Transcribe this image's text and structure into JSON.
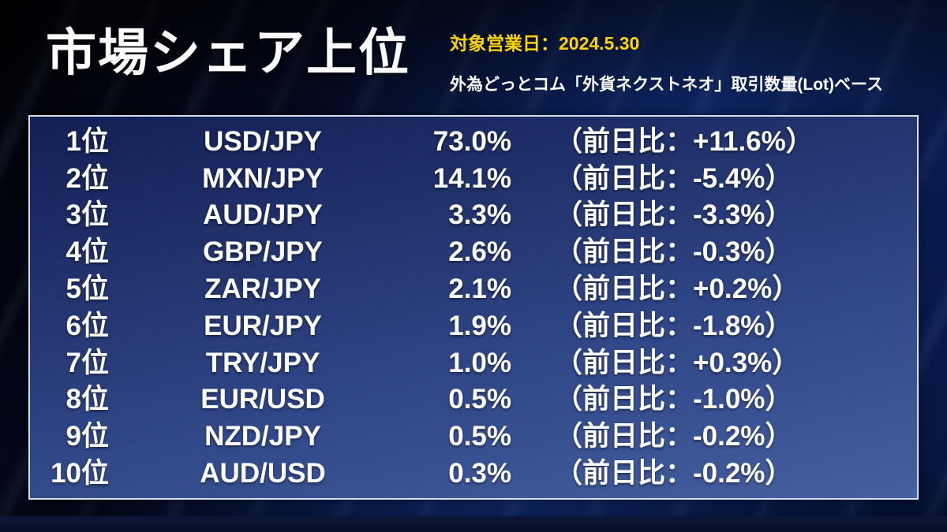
{
  "header": {
    "title": "市場シェア上位",
    "date_label": "対象営業日：2024.5.30",
    "subtitle": "外為どっとコム「外貨ネクストネオ」取引数量(Lot)ベース"
  },
  "colors": {
    "accent_yellow": "#ffd400",
    "panel_border": "#d9dde8",
    "panel_gradient_top": "#131f55",
    "panel_gradient_bottom": "#45609f",
    "background_blue": "#0d2668",
    "text": "#ffffff"
  },
  "chart_data": {
    "type": "table",
    "title": "市場シェア上位",
    "rows": [
      {
        "rank": "1位",
        "pair": "USD/JPY",
        "share": "73.0%",
        "share_value": 73.0,
        "change": "（前日比：+11.6%）",
        "change_value": 11.6
      },
      {
        "rank": "2位",
        "pair": "MXN/JPY",
        "share": "14.1%",
        "share_value": 14.1,
        "change": "（前日比：-5.4%）",
        "change_value": -5.4
      },
      {
        "rank": "3位",
        "pair": "AUD/JPY",
        "share": "3.3%",
        "share_value": 3.3,
        "change": "（前日比：-3.3%）",
        "change_value": -3.3
      },
      {
        "rank": "4位",
        "pair": "GBP/JPY",
        "share": "2.6%",
        "share_value": 2.6,
        "change": "（前日比：-0.3%）",
        "change_value": -0.3
      },
      {
        "rank": "5位",
        "pair": "ZAR/JPY",
        "share": "2.1%",
        "share_value": 2.1,
        "change": "（前日比：+0.2%）",
        "change_value": 0.2
      },
      {
        "rank": "6位",
        "pair": "EUR/JPY",
        "share": "1.9%",
        "share_value": 1.9,
        "change": "（前日比：-1.8%）",
        "change_value": -1.8
      },
      {
        "rank": "7位",
        "pair": "TRY/JPY",
        "share": "1.0%",
        "share_value": 1.0,
        "change": "（前日比：+0.3%）",
        "change_value": 0.3
      },
      {
        "rank": "8位",
        "pair": "EUR/USD",
        "share": "0.5%",
        "share_value": 0.5,
        "change": "（前日比：-1.0%）",
        "change_value": -1.0
      },
      {
        "rank": "9位",
        "pair": "NZD/JPY",
        "share": "0.5%",
        "share_value": 0.5,
        "change": "（前日比：-0.2%）",
        "change_value": -0.2
      },
      {
        "rank": "10位",
        "pair": "AUD/USD",
        "share": "0.3%",
        "share_value": 0.3,
        "change": "（前日比：-0.2%）",
        "change_value": -0.2
      }
    ]
  }
}
